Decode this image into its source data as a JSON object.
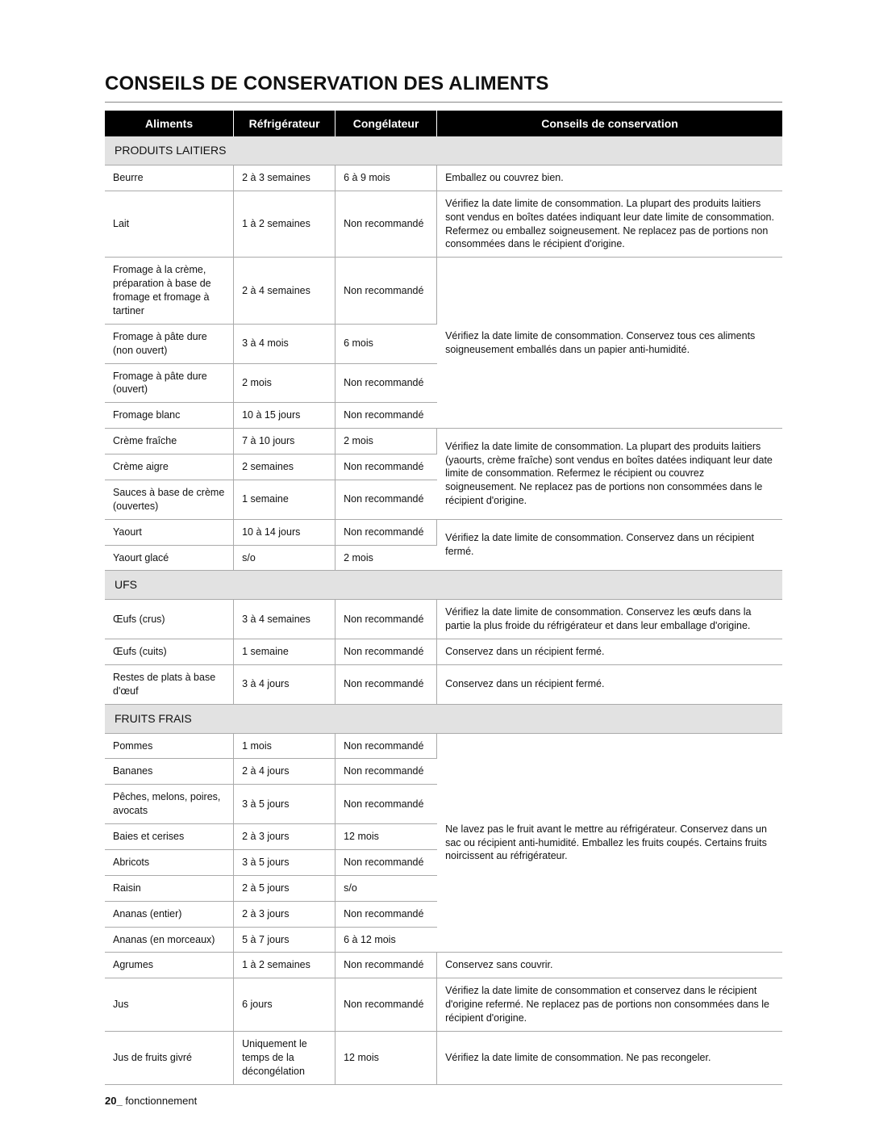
{
  "title": "CONSEILS DE CONSERVATION DES ALIMENTS",
  "headers": {
    "food": "Aliments",
    "fridge": "Réfrigérateur",
    "freezer": "Congélateur",
    "tips": "Conseils de conservation"
  },
  "section_dairy": "PRODUITS LAITIERS",
  "dairy": {
    "beurre": {
      "name": "Beurre",
      "fridge": "2 à 3 semaines",
      "freezer": "6 à 9 mois",
      "tip": "Emballez ou couvrez bien."
    },
    "lait": {
      "name": "Lait",
      "fridge": "1 à 2 semaines",
      "freezer": "Non recommandé",
      "tip": "Vérifiez la date limite de consommation. La plupart des produits laitiers sont vendus en boîtes datées indiquant leur date limite de consommation. Refermez ou emballez soigneusement. Ne replacez pas de portions non consommées dans le récipient d'origine."
    },
    "fromage_creme": {
      "name": "Fromage à la crème, préparation à base de fromage et fromage à tartiner",
      "fridge": "2 à 4 semaines",
      "freezer": "Non recommandé"
    },
    "fromage_dure_non": {
      "name": "Fromage à pâte dure (non ouvert)",
      "fridge": "3 à 4 mois",
      "freezer": "6 mois"
    },
    "fromage_dure_ouv": {
      "name": "Fromage à pâte dure (ouvert)",
      "fridge": "2 mois",
      "freezer": "Non recommandé"
    },
    "fromage_blanc": {
      "name": "Fromage blanc",
      "fridge": "10 à 15 jours",
      "freezer": "Non recommandé"
    },
    "tip_fromages": "Vérifiez la date limite de consommation. Conservez tous ces aliments soigneusement emballés dans un papier anti-humidité.",
    "creme_fraiche": {
      "name": "Crème fraîche",
      "fridge": "7 à 10 jours",
      "freezer": "2 mois"
    },
    "creme_aigre": {
      "name": "Crème aigre",
      "fridge": "2 semaines",
      "freezer": "Non recommandé"
    },
    "sauces_creme": {
      "name": "Sauces à base de crème (ouvertes)",
      "fridge": "1 semaine",
      "freezer": "Non recommandé"
    },
    "tip_cremes": "Vérifiez la date limite de consommation. La plupart des produits laitiers (yaourts, crème fraîche) sont vendus en boîtes datées indiquant leur date limite de consommation. Refermez le récipient ou couvrez soigneusement. Ne replacez pas de portions non consommées dans le récipient d'origine.",
    "yaourt": {
      "name": "Yaourt",
      "fridge": "10 à 14 jours",
      "freezer": "Non recommandé"
    },
    "yaourt_glace": {
      "name": "Yaourt glacé",
      "fridge": "s/o",
      "freezer": "2 mois"
    },
    "tip_yaourt": "Vérifiez la date limite de consommation. Conservez dans un récipient fermé."
  },
  "section_ufs": "UFS",
  "ufs": {
    "crus": {
      "name": "Œufs (crus)",
      "fridge": "3 à 4 semaines",
      "freezer": "Non recommandé",
      "tip": "Vérifiez la date limite de consommation. Conservez les œufs dans la partie la plus froide du réfrigérateur et dans leur emballage d'origine."
    },
    "cuits": {
      "name": "Œufs (cuits)",
      "fridge": "1 semaine",
      "freezer": "Non recommandé",
      "tip": "Conservez dans un récipient fermé."
    },
    "restes": {
      "name": "Restes de plats à base d'œuf",
      "fridge": "3 à 4 jours",
      "freezer": "Non recommandé",
      "tip": "Conservez dans un récipient fermé."
    }
  },
  "section_fruits": "FRUITS FRAIS",
  "fruits": {
    "pommes": {
      "name": "Pommes",
      "fridge": "1 mois",
      "freezer": "Non recommandé"
    },
    "bananes": {
      "name": "Bananes",
      "fridge": "2 à 4 jours",
      "freezer": "Non recommandé"
    },
    "peches": {
      "name": "Pêches, melons, poires, avocats",
      "fridge": "3 à 5 jours",
      "freezer": "Non recommandé"
    },
    "baies": {
      "name": "Baies et cerises",
      "fridge": "2 à 3 jours",
      "freezer": "12 mois"
    },
    "abricots": {
      "name": "Abricots",
      "fridge": "3 à 5 jours",
      "freezer": "Non recommandé"
    },
    "raisin": {
      "name": "Raisin",
      "fridge": "2 à 5 jours",
      "freezer": "s/o"
    },
    "ananas_ent": {
      "name": "Ananas (entier)",
      "fridge": "2 à 3 jours",
      "freezer": "Non recommandé"
    },
    "ananas_mor": {
      "name": "Ananas (en morceaux)",
      "fridge": "5 à 7 jours",
      "freezer": "6 à 12 mois"
    },
    "tip_fruits": "Ne lavez pas le fruit avant le mettre au réfrigérateur. Conservez dans un sac ou récipient anti-humidité. Emballez les fruits coupés. Certains fruits noircissent au réfrigérateur.",
    "agrumes": {
      "name": "Agrumes",
      "fridge": "1 à 2 semaines",
      "freezer": "Non recommandé",
      "tip": "Conservez sans couvrir."
    },
    "jus": {
      "name": "Jus",
      "fridge": "6 jours",
      "freezer": "Non recommandé",
      "tip": "Vérifiez la date limite de consommation et conservez dans le récipient d'origine refermé. Ne replacez pas de portions non consommées dans le récipient d'origine."
    },
    "jus_givre": {
      "name": "Jus de fruits givré",
      "fridge": "Uniquement le temps de la décongélation",
      "freezer": "12 mois",
      "tip": "Vérifiez la date limite de consommation. Ne pas recongeler."
    }
  },
  "footer_num": "20_",
  "footer_text": " fonctionnement"
}
